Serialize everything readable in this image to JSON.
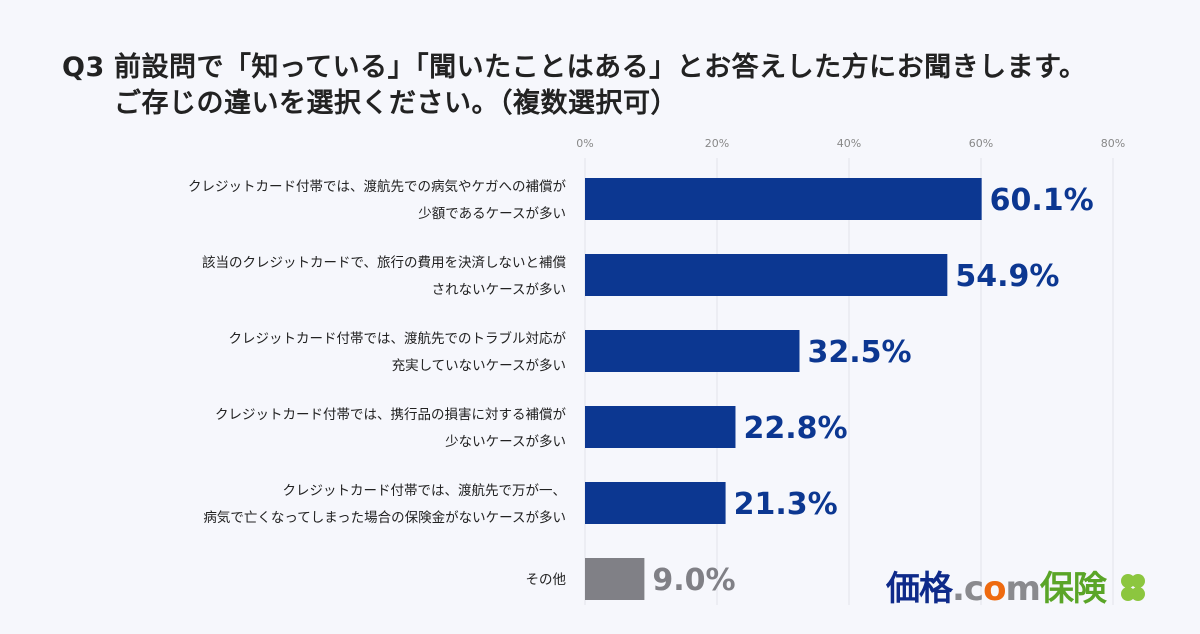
{
  "title": {
    "prefix": "Q3",
    "line1": "前設問で「知っている」「聞いたことはある」とお答えした方にお聞きします。",
    "line2": "ご存じの違いを選択ください。（複数選択可）"
  },
  "logo": {
    "part1": "価格",
    "part2": ".c",
    "part3": "o",
    "part4": "m",
    "part5": "保険",
    "icon": "clover-icon"
  },
  "chart_data": {
    "type": "bar",
    "orientation": "horizontal",
    "categories": [
      [
        "クレジットカード付帯では、渡航先での病気やケガへの補償が",
        "少額であるケースが多い"
      ],
      [
        "該当のクレジットカードで、旅行の費用を決済しないと補償",
        "されないケースが多い"
      ],
      [
        "クレジットカード付帯では、渡航先でのトラブル対応が",
        "充実していないケースが多い"
      ],
      [
        "クレジットカード付帯では、携行品の損害に対する補償が",
        "少ないケースが多い"
      ],
      [
        "クレジットカード付帯では、渡航先で万が一、",
        "病気で亡くなってしまった場合の保険金がないケースが多い"
      ],
      [
        "その他"
      ]
    ],
    "values": [
      60.1,
      54.9,
      32.5,
      22.8,
      21.3,
      9.0
    ],
    "data_labels": [
      "60.1%",
      "54.9%",
      "32.5%",
      "22.8%",
      "21.3%",
      "9.0%"
    ],
    "xlim": [
      0,
      80
    ],
    "x_ticks": [
      "0%",
      "20%",
      "40%",
      "60%",
      "80%"
    ],
    "grid": true,
    "colors": {
      "main": "#0c3791",
      "other": "#808086",
      "label_main": "#0c3791",
      "label_other": "#808086"
    }
  }
}
